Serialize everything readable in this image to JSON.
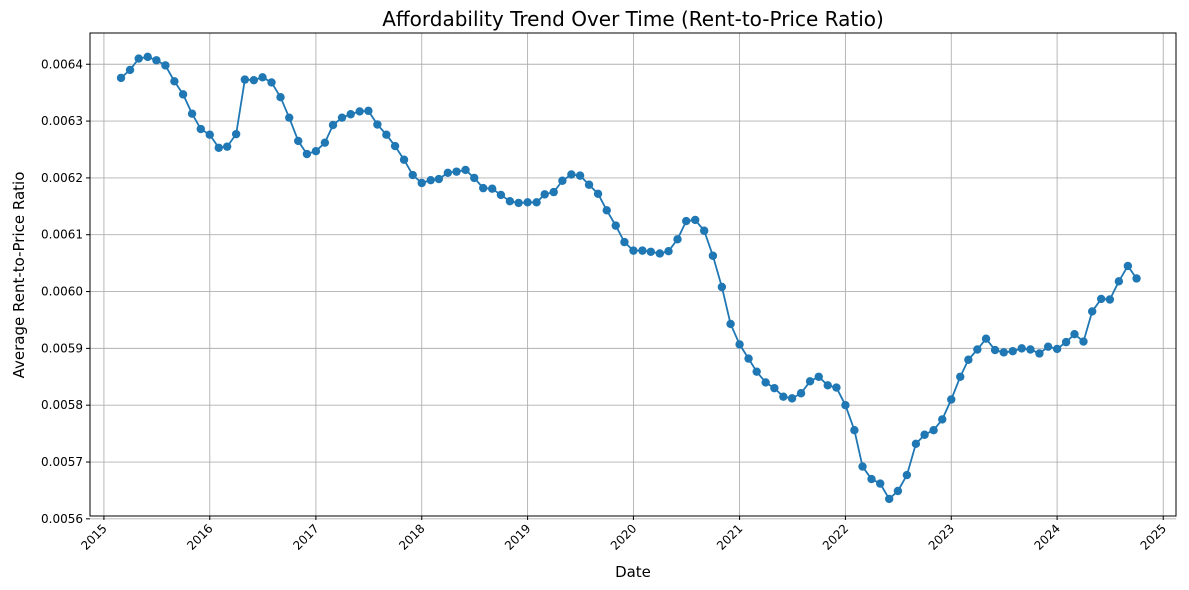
{
  "chart_data": {
    "type": "line",
    "title": "Affordability Trend Over Time (Rent-to-Price Ratio)",
    "xlabel": "Date",
    "ylabel": "Average Rent-to-Price Ratio",
    "x_ticks": [
      "2015",
      "2016",
      "2017",
      "2018",
      "2019",
      "2020",
      "2021",
      "2022",
      "2023",
      "2024",
      "2025"
    ],
    "y_ticks": [
      "0.0056",
      "0.0057",
      "0.0058",
      "0.0059",
      "0.0060",
      "0.0061",
      "0.0062",
      "0.0063",
      "0.0064"
    ],
    "xlim": [
      "2014-11-14",
      "2025-02-14"
    ],
    "ylim": [
      0.005605,
      0.006455
    ],
    "grid": true,
    "line_color": "#1f77b4",
    "marker": "circle",
    "series": [
      {
        "x": [
          "2015-03-01",
          "2015-04-01",
          "2015-05-01",
          "2015-06-01",
          "2015-07-01",
          "2015-08-01",
          "2015-09-01",
          "2015-10-01",
          "2015-11-01",
          "2015-12-01",
          "2016-01-01",
          "2016-02-01",
          "2016-03-01",
          "2016-04-01",
          "2016-05-01",
          "2016-06-01",
          "2016-07-01",
          "2016-08-01",
          "2016-09-01",
          "2016-10-01",
          "2016-11-01",
          "2016-12-01",
          "2017-01-01",
          "2017-02-01",
          "2017-03-01",
          "2017-04-01",
          "2017-05-01",
          "2017-06-01",
          "2017-07-01",
          "2017-08-01",
          "2017-09-01",
          "2017-10-01",
          "2017-11-01",
          "2017-12-01",
          "2018-01-01",
          "2018-02-01",
          "2018-03-01",
          "2018-04-01",
          "2018-05-01",
          "2018-06-01",
          "2018-07-01",
          "2018-08-01",
          "2018-09-01",
          "2018-10-01",
          "2018-11-01",
          "2018-12-01",
          "2019-01-01",
          "2019-02-01",
          "2019-03-01",
          "2019-04-01",
          "2019-05-01",
          "2019-06-01",
          "2019-07-01",
          "2019-08-01",
          "2019-09-01",
          "2019-10-01",
          "2019-11-01",
          "2019-12-01",
          "2020-01-01",
          "2020-02-01",
          "2020-03-01",
          "2020-04-01",
          "2020-05-01",
          "2020-06-01",
          "2020-07-01",
          "2020-08-01",
          "2020-09-01",
          "2020-10-01",
          "2020-11-01",
          "2020-12-01",
          "2021-01-01",
          "2021-02-01",
          "2021-03-01",
          "2021-04-01",
          "2021-05-01",
          "2021-06-01",
          "2021-07-01",
          "2021-08-01",
          "2021-09-01",
          "2021-10-01",
          "2021-11-01",
          "2021-12-01",
          "2022-01-01",
          "2022-02-01",
          "2022-03-01",
          "2022-04-01",
          "2022-05-01",
          "2022-06-01",
          "2022-07-01",
          "2022-08-01",
          "2022-09-01",
          "2022-10-01",
          "2022-11-01",
          "2022-12-01",
          "2023-01-01",
          "2023-02-01",
          "2023-03-01",
          "2023-04-01",
          "2023-05-01",
          "2023-06-01",
          "2023-07-01",
          "2023-08-01",
          "2023-09-01",
          "2023-10-01",
          "2023-11-01",
          "2023-12-01",
          "2024-01-01",
          "2024-02-01",
          "2024-03-01",
          "2024-04-01",
          "2024-05-01",
          "2024-06-01",
          "2024-07-01",
          "2024-08-01",
          "2024-09-01",
          "2024-10-01"
        ],
        "y": [
          0.006376,
          0.00639,
          0.00641,
          0.006413,
          0.006407,
          0.006398,
          0.00637,
          0.006347,
          0.006313,
          0.006286,
          0.006276,
          0.006253,
          0.006255,
          0.006277,
          0.006373,
          0.006372,
          0.006377,
          0.006368,
          0.006342,
          0.006306,
          0.006265,
          0.006242,
          0.006247,
          0.006262,
          0.006293,
          0.006306,
          0.006312,
          0.006317,
          0.006318,
          0.006294,
          0.006276,
          0.006256,
          0.006232,
          0.006205,
          0.006191,
          0.006196,
          0.006198,
          0.006209,
          0.006211,
          0.006214,
          0.0062,
          0.006182,
          0.006181,
          0.00617,
          0.006159,
          0.006156,
          0.006157,
          0.006157,
          0.006171,
          0.006175,
          0.006195,
          0.006206,
          0.006204,
          0.006188,
          0.006172,
          0.006143,
          0.006116,
          0.006087,
          0.006072,
          0.006072,
          0.00607,
          0.006067,
          0.006071,
          0.006092,
          0.006124,
          0.006126,
          0.006107,
          0.006063,
          0.006008,
          0.005943,
          0.005907,
          0.005882,
          0.005859,
          0.00584,
          0.00583,
          0.005815,
          0.005812,
          0.005821,
          0.005842,
          0.00585,
          0.005835,
          0.005831,
          0.0058,
          0.005756,
          0.005692,
          0.00567,
          0.005662,
          0.005635,
          0.005649,
          0.005677,
          0.005732,
          0.005748,
          0.005756,
          0.005775,
          0.00581,
          0.00585,
          0.00588,
          0.005898,
          0.005917,
          0.005897,
          0.005893,
          0.005895,
          0.0059,
          0.005898,
          0.005891,
          0.005903,
          0.005899,
          0.005911,
          0.005925,
          0.005912,
          0.005965,
          0.005987,
          0.005986,
          0.006018,
          0.006045,
          0.006023
        ]
      }
    ]
  }
}
